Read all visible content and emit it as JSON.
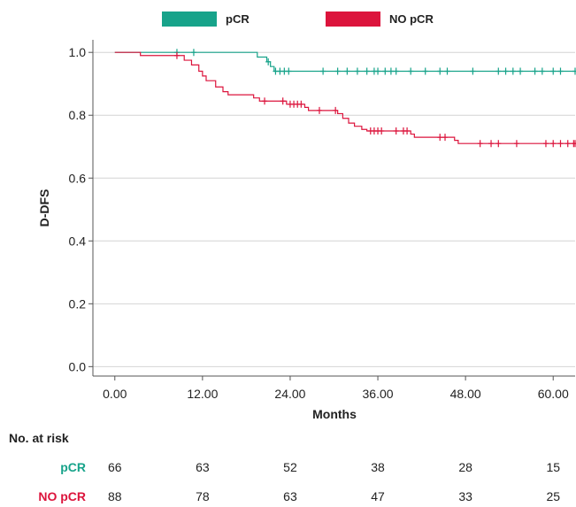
{
  "chart_data": {
    "type": "line",
    "title": "",
    "xlabel": "Months",
    "ylabel": "D-DFS",
    "xlim": [
      -3,
      63
    ],
    "ylim": [
      -0.03,
      1.04
    ],
    "x_ticks": [
      {
        "value": 0,
        "label": "0.00"
      },
      {
        "value": 12,
        "label": "12.00"
      },
      {
        "value": 24,
        "label": "24.00"
      },
      {
        "value": 36,
        "label": "36.00"
      },
      {
        "value": 48,
        "label": "48.00"
      },
      {
        "value": 60,
        "label": "60.00"
      }
    ],
    "y_ticks": [
      {
        "value": 0.0,
        "label": "0.0"
      },
      {
        "value": 0.2,
        "label": "0.2"
      },
      {
        "value": 0.4,
        "label": "0.4"
      },
      {
        "value": 0.6,
        "label": "0.6"
      },
      {
        "value": 0.8,
        "label": "0.8"
      },
      {
        "value": 1.0,
        "label": "1.0"
      }
    ],
    "grid": "horizontal",
    "legend_position": "top-center",
    "series": [
      {
        "name": "pCR",
        "color": "#17a38a",
        "step_points": [
          [
            0,
            1.0
          ],
          [
            19.5,
            0.985
          ],
          [
            20.8,
            0.97
          ],
          [
            21.3,
            0.955
          ],
          [
            21.8,
            0.94
          ],
          [
            63,
            0.94
          ]
        ],
        "censored": [
          8.5,
          10.8,
          21.0,
          22.0,
          22.6,
          23.2,
          23.8,
          28.5,
          30.5,
          31.8,
          33.2,
          34.5,
          35.5,
          36.0,
          37.0,
          37.8,
          38.5,
          40.5,
          42.5,
          44.5,
          45.5,
          49.0,
          52.5,
          53.5,
          54.5,
          55.5,
          57.5,
          58.5,
          60.0,
          61.0,
          63.0
        ]
      },
      {
        "name": "NO pCR",
        "color": "#dc143c",
        "step_points": [
          [
            0,
            1.0
          ],
          [
            3.5,
            0.99
          ],
          [
            9.5,
            0.975
          ],
          [
            10.5,
            0.96
          ],
          [
            11.5,
            0.94
          ],
          [
            12.0,
            0.925
          ],
          [
            12.5,
            0.91
          ],
          [
            13.8,
            0.89
          ],
          [
            14.8,
            0.875
          ],
          [
            15.5,
            0.865
          ],
          [
            19.0,
            0.855
          ],
          [
            19.8,
            0.845
          ],
          [
            23.5,
            0.835
          ],
          [
            26.0,
            0.825
          ],
          [
            26.5,
            0.815
          ],
          [
            30.5,
            0.805
          ],
          [
            31.2,
            0.79
          ],
          [
            32.0,
            0.775
          ],
          [
            32.8,
            0.765
          ],
          [
            33.8,
            0.755
          ],
          [
            34.5,
            0.75
          ],
          [
            40.5,
            0.74
          ],
          [
            41.0,
            0.73
          ],
          [
            46.5,
            0.72
          ],
          [
            47.0,
            0.71
          ],
          [
            63,
            0.71
          ]
        ],
        "censored": [
          8.5,
          20.5,
          23.0,
          24.0,
          24.5,
          25.0,
          25.5,
          28.0,
          30.2,
          35.0,
          35.5,
          36.0,
          36.5,
          38.5,
          39.5,
          40.0,
          44.5,
          45.2,
          50.0,
          51.5,
          52.5,
          55.0,
          59.0,
          60.0,
          61.0,
          62.0,
          62.8,
          63.0
        ]
      }
    ],
    "risk_table": {
      "title": "No. at risk",
      "times": [
        0,
        12,
        24,
        36,
        48,
        60
      ],
      "rows": [
        {
          "name": "pCR",
          "color": "#17a38a",
          "values": [
            "66",
            "63",
            "52",
            "38",
            "28",
            "15"
          ]
        },
        {
          "name": "NO pCR",
          "color": "#dc143c",
          "values": [
            "88",
            "78",
            "63",
            "47",
            "33",
            "25"
          ]
        }
      ]
    }
  }
}
